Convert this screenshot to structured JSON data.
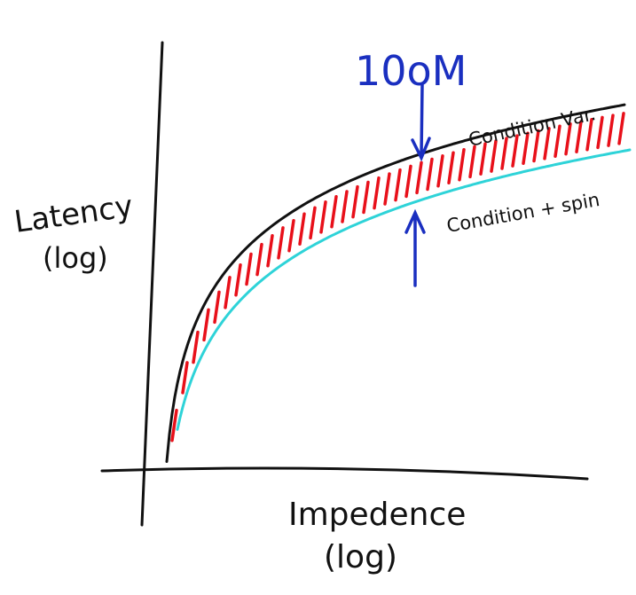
{
  "y_axis": {
    "label": "Latency",
    "scale": "(log)"
  },
  "x_axis": {
    "label": "Impedence",
    "scale": "(log)"
  },
  "curves": [
    {
      "label": "Condition Var."
    },
    {
      "label": "Condition + spin"
    }
  ],
  "annotation": "10oM"
}
